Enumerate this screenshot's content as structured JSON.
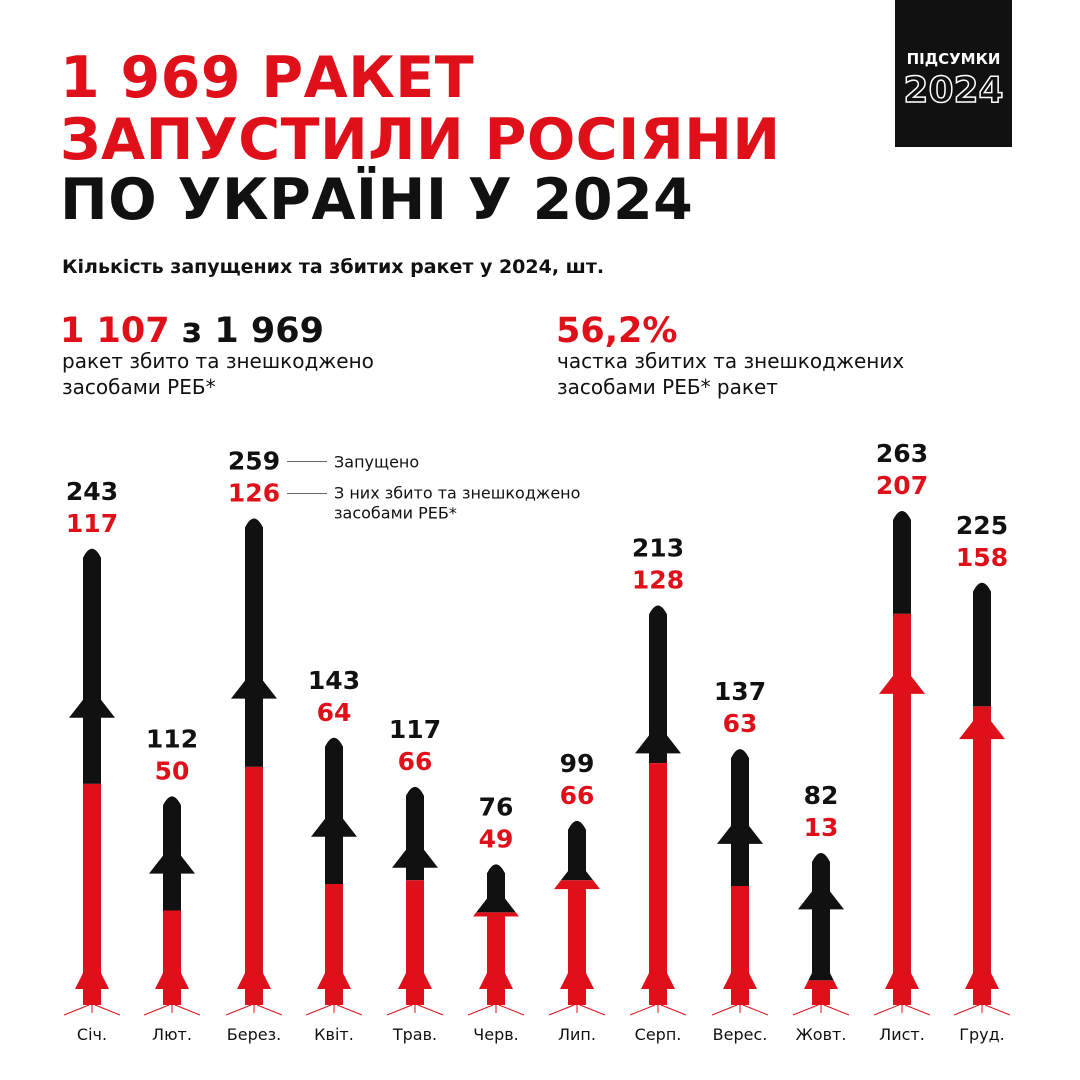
{
  "title": {
    "line1": "1 969 РАКЕТ",
    "line2": "ЗАПУСТИЛИ РОСІЯНИ",
    "line3": "ПО УКРАЇНІ У 2024"
  },
  "badge": {
    "top": "ПІДСУМКИ",
    "year": "2024"
  },
  "subtitle": "Кількість запущених та збитих ракет у 2024, шт.",
  "stats": {
    "left_count": "1 107",
    "left_of": "з 1 969",
    "left_desc1": "ракет збито та знешкоджено",
    "left_desc2": "засобами РЕБ*",
    "right_pct": "56,2%",
    "right_desc1": "частка збитих та знешкоджених",
    "right_desc2": "засобами РЕБ* ракет"
  },
  "colors": {
    "launched": "#111111",
    "shot_down": "#e0101a",
    "background": "#ffffff"
  },
  "chart_data": {
    "type": "bar",
    "categories": [
      "Січ.",
      "Лют.",
      "Берез.",
      "Квіт.",
      "Трав.",
      "Черв.",
      "Лип.",
      "Серп.",
      "Верес.",
      "Жовт.",
      "Лист.",
      "Груд."
    ],
    "series": [
      {
        "name": "Запущено",
        "values": [
          243,
          112,
          259,
          143,
          117,
          76,
          99,
          213,
          137,
          82,
          263,
          225
        ]
      },
      {
        "name": "З них збито та знешкоджено засобами РЕБ*",
        "values": [
          117,
          50,
          126,
          64,
          66,
          49,
          66,
          128,
          63,
          13,
          207,
          158
        ]
      }
    ],
    "legend": {
      "launched": "Запущено",
      "shot_down_line1": "З них збито та знешкоджено",
      "shot_down_line2": "засобами РЕБ*"
    }
  }
}
